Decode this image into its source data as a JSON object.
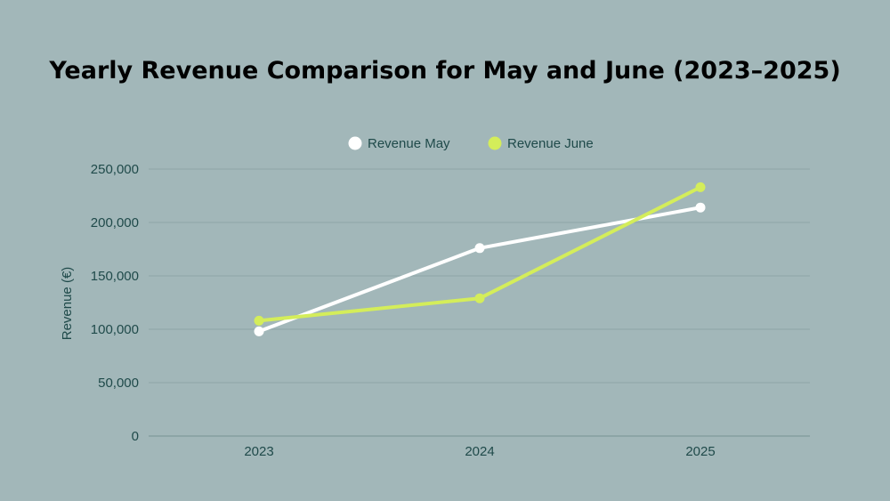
{
  "chart_data": {
    "type": "line",
    "title": "Yearly Revenue Comparison for May and June (2023–2025)",
    "xlabel": "",
    "ylabel": "Revenue (€)",
    "categories": [
      "2023",
      "2024",
      "2025"
    ],
    "series": [
      {
        "name": "Revenue May",
        "values": [
          98000,
          176000,
          214000
        ],
        "color": "#ffffff"
      },
      {
        "name": "Revenue June",
        "values": [
          108000,
          129000,
          233000
        ],
        "color": "#d4ed5a"
      }
    ],
    "ylim": [
      0,
      250000
    ],
    "yticks": [
      0,
      50000,
      100000,
      150000,
      200000,
      250000
    ],
    "ytick_labels": [
      "0",
      "50,000",
      "100,000",
      "150,000",
      "200,000",
      "250,000"
    ],
    "grid": "horizontal",
    "legend_position": "top-center",
    "colors": {
      "background": "#a2b7b9",
      "gridline": "#8da6a8",
      "axis": "#7f9a9c",
      "text": "#1f4a4a"
    }
  }
}
